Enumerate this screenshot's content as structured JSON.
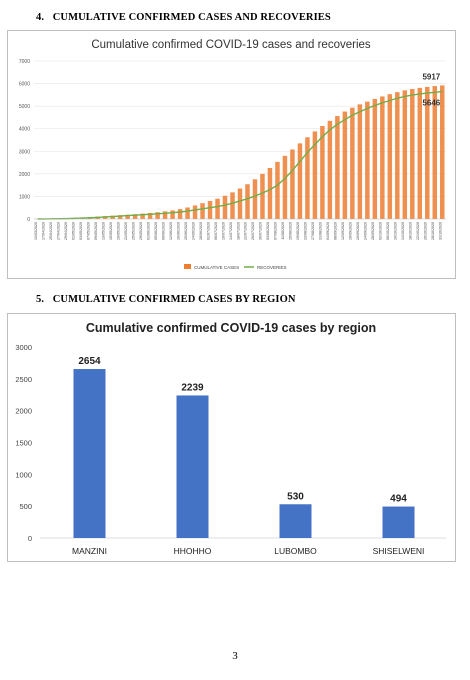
{
  "section4": {
    "number": "4.",
    "title": "CUMULATIVE CONFIRMED CASES AND RECOVERIES"
  },
  "section5": {
    "number": "5.",
    "title": "CUMULATIVE CONFIRMED CASES BY REGION"
  },
  "page_number": "3",
  "colors": {
    "cases": "#ED7D31",
    "recoveries": "#70AD47",
    "bars": "#4472C4"
  },
  "chart_data": [
    {
      "type": "bar",
      "title": "Cumulative confirmed COVID-19 cases and recoveries",
      "ylim": [
        0,
        7000
      ],
      "yticks": [
        "0",
        "1000",
        "2000",
        "3000",
        "4000",
        "5000",
        "6000",
        "7000"
      ],
      "x_tick_labels": [
        "13/03/2020",
        "17/04/2020",
        "25/04/2020",
        "27/04/2020",
        "29/04/2020",
        "01/05/2020",
        "03/05/2020",
        "07/05/2020",
        "09/05/2020",
        "13/05/2020",
        "15/05/2020",
        "19/05/2020",
        "21/05/2020",
        "25/05/2020",
        "29/05/2020",
        "01/06/2020",
        "05/06/2020",
        "09/06/2020",
        "12/06/2020",
        "16/06/2020",
        "20/06/2020",
        "24/06/2020",
        "28/06/2020",
        "02/07/2020",
        "06/07/2020",
        "10/07/2020",
        "14/07/2020",
        "18/07/2020",
        "22/07/2020",
        "26/07/2020",
        "30/07/2020",
        "03/08/2020",
        "07/08/2020",
        "11/08/2020",
        "15/08/2020",
        "19/08/2020",
        "23/08/2020",
        "27/08/2020",
        "31/08/2020",
        "04/09/2020",
        "08/09/2020",
        "12/09/2020",
        "16/09/2020",
        "20/09/2020",
        "24/09/2020",
        "28/09/2020",
        "02/10/2020",
        "06/10/2020",
        "10/10/2020",
        "14/10/2020",
        "18/10/2020",
        "22/10/2020",
        "26/10/2020",
        "28/10/2020",
        "31/10/2020"
      ],
      "legend": [
        "CUMULATIVE CASES",
        "RECOVERIES"
      ],
      "legend_position": "bottom",
      "annotations": [
        "5917",
        "5646"
      ],
      "series": [
        {
          "name": "CUMULATIVE CASES",
          "values": [
            15,
            20,
            25,
            30,
            40,
            55,
            70,
            90,
            110,
            130,
            150,
            170,
            190,
            215,
            240,
            270,
            300,
            340,
            380,
            440,
            510,
            600,
            700,
            800,
            900,
            1030,
            1180,
            1350,
            1540,
            1760,
            2000,
            2260,
            2530,
            2800,
            3080,
            3350,
            3620,
            3880,
            4120,
            4350,
            4560,
            4760,
            4930,
            5080,
            5200,
            5320,
            5430,
            5530,
            5620,
            5700,
            5760,
            5810,
            5850,
            5890,
            5917
          ]
        },
        {
          "name": "RECOVERIES",
          "values": [
            0,
            5,
            10,
            15,
            20,
            30,
            40,
            55,
            70,
            90,
            110,
            130,
            150,
            170,
            190,
            210,
            230,
            250,
            280,
            310,
            350,
            400,
            450,
            500,
            550,
            620,
            700,
            800,
            900,
            1020,
            1150,
            1300,
            1500,
            1800,
            2150,
            2550,
            2950,
            3300,
            3650,
            3950,
            4200,
            4400,
            4600,
            4750,
            4900,
            5030,
            5150,
            5250,
            5350,
            5430,
            5490,
            5540,
            5580,
            5615,
            5646
          ]
        }
      ]
    },
    {
      "type": "bar",
      "title": "Cumulative confirmed COVID-19 cases by region",
      "categories": [
        "MANZINI",
        "HHOHHO",
        "LUBOMBO",
        "SHISELWENI"
      ],
      "values": [
        2654,
        2239,
        530,
        494
      ],
      "data_labels": [
        "2654",
        "2239",
        "530",
        "494"
      ],
      "ylim": [
        0,
        3000
      ],
      "yticks": [
        "0",
        "500",
        "1000",
        "1500",
        "2000",
        "2500",
        "3000"
      ]
    }
  ]
}
